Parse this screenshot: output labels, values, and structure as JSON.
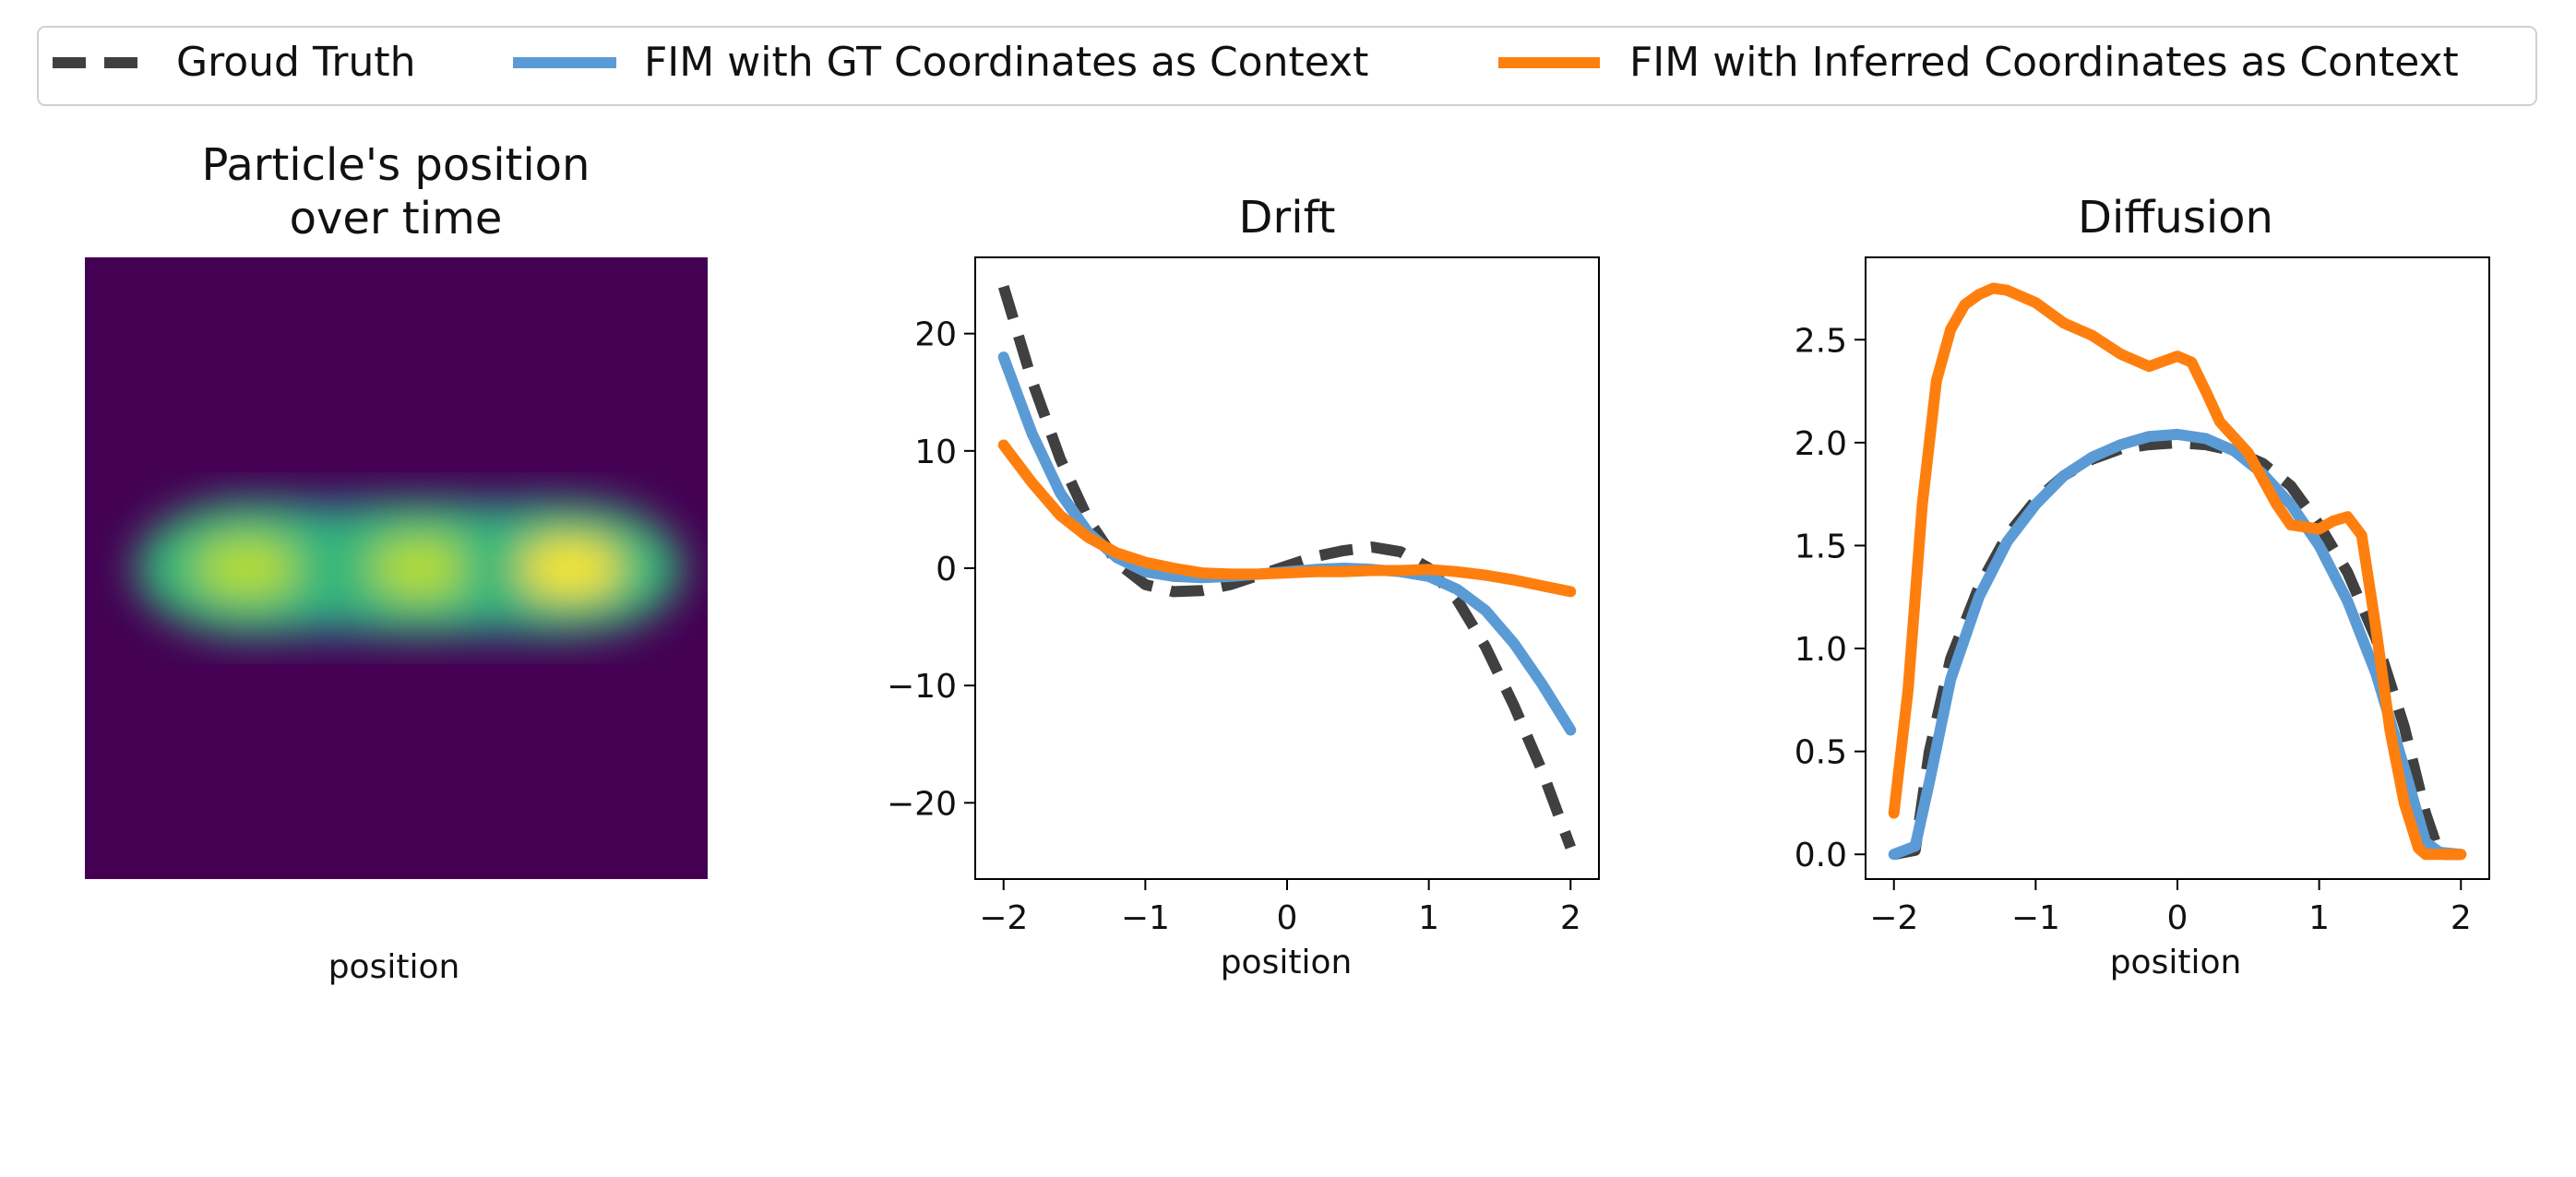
{
  "legend": {
    "placement": "top-center",
    "entries": [
      {
        "label": "Groud Truth",
        "color": "#404040",
        "style": "dashed"
      },
      {
        "label": "FIM with GT Coordinates as Context",
        "color": "#5b9bd5",
        "style": "solid"
      },
      {
        "label": "FIM with Inferred Coordinates as Context",
        "color": "#ff7f0e",
        "style": "solid"
      }
    ]
  },
  "chart_data": [
    {
      "type": "heatmap",
      "title_lines": [
        "Particle's position",
        "over time"
      ],
      "xlabel": "position",
      "colormap": "viridis",
      "grid": false,
      "blobs": [
        {
          "x": 0.26,
          "y": 0.5,
          "intensity": 0.9
        },
        {
          "x": 0.54,
          "y": 0.5,
          "intensity": 0.92
        },
        {
          "x": 0.78,
          "y": 0.5,
          "intensity": 1.0
        }
      ]
    },
    {
      "type": "line",
      "title": "Drift",
      "xlabel": "position",
      "xlim": [
        -2.2,
        2.2
      ],
      "ylim": [
        -26.5,
        26.5
      ],
      "xticks": [
        -2,
        -1,
        0,
        1,
        2
      ],
      "xtick_labels": [
        "−2",
        "−1",
        "0",
        "1",
        "2"
      ],
      "yticks": [
        -20,
        -10,
        0,
        10,
        20
      ],
      "ytick_labels": [
        "−20",
        "−10",
        "0",
        "10",
        "20"
      ],
      "grid": false,
      "series": [
        {
          "name": "Groud Truth",
          "color": "#404040",
          "style": "dashed",
          "x": [
            -2.0,
            -1.8,
            -1.6,
            -1.4,
            -1.2,
            -1.0,
            -0.8,
            -0.6,
            -0.4,
            -0.2,
            0.0,
            0.2,
            0.4,
            0.6,
            0.8,
            1.0,
            1.2,
            1.4,
            1.6,
            1.8,
            2.0
          ],
          "y": [
            24.0,
            16.0,
            9.3,
            4.1,
            0.5,
            -1.4,
            -2.0,
            -1.9,
            -1.4,
            -0.6,
            0.2,
            1.0,
            1.5,
            1.8,
            1.4,
            0.0,
            -2.7,
            -6.7,
            -11.7,
            -17.3,
            -23.8
          ]
        },
        {
          "name": "FIM with GT Coordinates as Context",
          "color": "#5b9bd5",
          "style": "solid",
          "x": [
            -2.0,
            -1.8,
            -1.6,
            -1.4,
            -1.2,
            -1.0,
            -0.8,
            -0.6,
            -0.4,
            -0.2,
            0.0,
            0.2,
            0.4,
            0.6,
            0.8,
            1.0,
            1.2,
            1.4,
            1.6,
            1.8,
            2.0
          ],
          "y": [
            18.0,
            11.5,
            6.4,
            3.0,
            0.9,
            -0.3,
            -0.7,
            -0.8,
            -0.7,
            -0.5,
            -0.3,
            -0.1,
            0.0,
            -0.1,
            -0.3,
            -0.7,
            -1.8,
            -3.6,
            -6.4,
            -9.9,
            -13.8
          ]
        },
        {
          "name": "FIM with Inferred Coordinates as Context",
          "color": "#ff7f0e",
          "style": "solid",
          "x": [
            -2.0,
            -1.8,
            -1.6,
            -1.4,
            -1.2,
            -1.0,
            -0.8,
            -0.6,
            -0.4,
            -0.2,
            0.0,
            0.2,
            0.4,
            0.6,
            0.8,
            1.0,
            1.2,
            1.4,
            1.6,
            1.8,
            2.0
          ],
          "y": [
            10.5,
            7.3,
            4.5,
            2.6,
            1.3,
            0.5,
            0.0,
            -0.4,
            -0.5,
            -0.5,
            -0.4,
            -0.3,
            -0.3,
            -0.2,
            -0.2,
            -0.1,
            -0.3,
            -0.6,
            -1.0,
            -1.5,
            -2.0
          ]
        }
      ]
    },
    {
      "type": "line",
      "title": "Diffusion",
      "xlabel": "position",
      "xlim": [
        -2.2,
        2.2
      ],
      "ylim": [
        -0.12,
        2.9
      ],
      "xticks": [
        -2,
        -1,
        0,
        1,
        2
      ],
      "xtick_labels": [
        "−2",
        "−1",
        "0",
        "1",
        "2"
      ],
      "yticks": [
        0.0,
        0.5,
        1.0,
        1.5,
        2.0,
        2.5
      ],
      "ytick_labels": [
        "0.0",
        "0.5",
        "1.0",
        "1.5",
        "2.0",
        "2.5"
      ],
      "grid": false,
      "series": [
        {
          "name": "Groud Truth",
          "color": "#404040",
          "style": "dashed",
          "x": [
            -2.0,
            -1.85,
            -1.75,
            -1.6,
            -1.4,
            -1.2,
            -1.0,
            -0.8,
            -0.6,
            -0.4,
            -0.2,
            0.0,
            0.2,
            0.4,
            0.6,
            0.8,
            1.0,
            1.2,
            1.4,
            1.6,
            1.75,
            1.85,
            2.0
          ],
          "y": [
            0.0,
            0.02,
            0.5,
            0.95,
            1.3,
            1.55,
            1.72,
            1.84,
            1.92,
            1.97,
            1.99,
            2.0,
            1.99,
            1.96,
            1.9,
            1.79,
            1.6,
            1.37,
            1.05,
            0.62,
            0.2,
            0.0,
            0.0
          ]
        },
        {
          "name": "FIM with GT Coordinates as Context",
          "color": "#5b9bd5",
          "style": "solid",
          "x": [
            -2.0,
            -1.85,
            -1.75,
            -1.6,
            -1.4,
            -1.2,
            -1.0,
            -0.8,
            -0.6,
            -0.4,
            -0.2,
            0.0,
            0.2,
            0.4,
            0.6,
            0.8,
            1.0,
            1.2,
            1.4,
            1.6,
            1.75,
            1.85,
            2.0
          ],
          "y": [
            0.0,
            0.04,
            0.35,
            0.85,
            1.25,
            1.52,
            1.7,
            1.84,
            1.93,
            1.99,
            2.03,
            2.04,
            2.02,
            1.96,
            1.85,
            1.7,
            1.5,
            1.23,
            0.88,
            0.42,
            0.06,
            0.01,
            0.0
          ]
        },
        {
          "name": "FIM with Inferred Coordinates as Context",
          "color": "#ff7f0e",
          "style": "solid",
          "x": [
            -2.0,
            -1.9,
            -1.8,
            -1.7,
            -1.6,
            -1.5,
            -1.4,
            -1.3,
            -1.2,
            -1.0,
            -0.8,
            -0.6,
            -0.4,
            -0.2,
            0.0,
            0.1,
            0.2,
            0.3,
            0.5,
            0.7,
            0.8,
            1.0,
            1.1,
            1.2,
            1.3,
            1.4,
            1.5,
            1.6,
            1.7,
            1.75,
            1.8,
            2.0
          ],
          "y": [
            0.2,
            0.8,
            1.7,
            2.3,
            2.55,
            2.67,
            2.72,
            2.75,
            2.74,
            2.68,
            2.58,
            2.52,
            2.43,
            2.37,
            2.42,
            2.39,
            2.25,
            2.1,
            1.95,
            1.7,
            1.6,
            1.58,
            1.62,
            1.64,
            1.55,
            1.1,
            0.6,
            0.25,
            0.03,
            0.0,
            0.0,
            0.0
          ]
        }
      ]
    }
  ]
}
